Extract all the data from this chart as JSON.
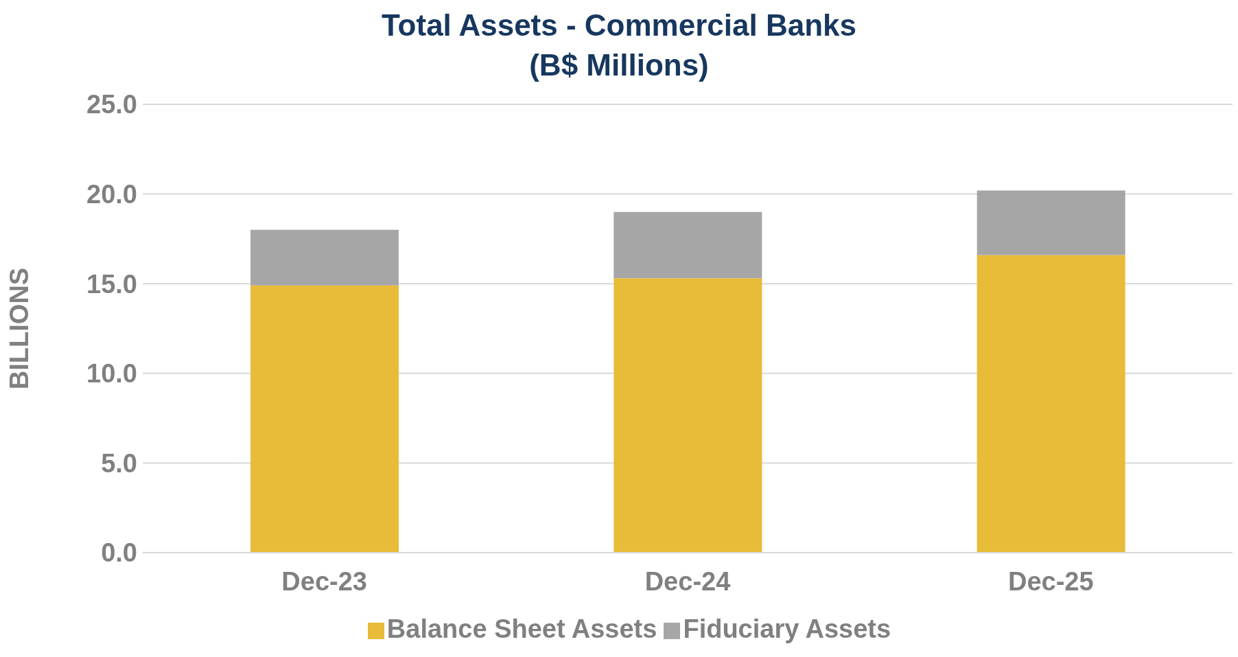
{
  "chart_data": {
    "type": "bar",
    "title": "Total Assets - Commercial Banks\n(B$ Millions)",
    "ylabel": "BILLIONS",
    "categories": [
      "Dec-23",
      "Dec-24",
      "Dec-25"
    ],
    "stacked": true,
    "series": [
      {
        "name": "Balance Sheet Assets",
        "color": "#e8bb38",
        "values": [
          14.9,
          15.3,
          16.6
        ]
      },
      {
        "name": "Fiduciary Assets",
        "color": "#a6a6a6",
        "values": [
          3.1,
          3.7,
          3.6
        ]
      }
    ],
    "ylim": [
      0,
      25
    ],
    "yticks": [
      {
        "value": 0,
        "label": "0.0"
      },
      {
        "value": 5,
        "label": "5.0"
      },
      {
        "value": 10,
        "label": "10.0"
      },
      {
        "value": 15,
        "label": "15.0"
      },
      {
        "value": 20,
        "label": "20.0"
      },
      {
        "value": 25,
        "label": "25.0"
      }
    ],
    "grid": "y",
    "legend": "bottom"
  }
}
